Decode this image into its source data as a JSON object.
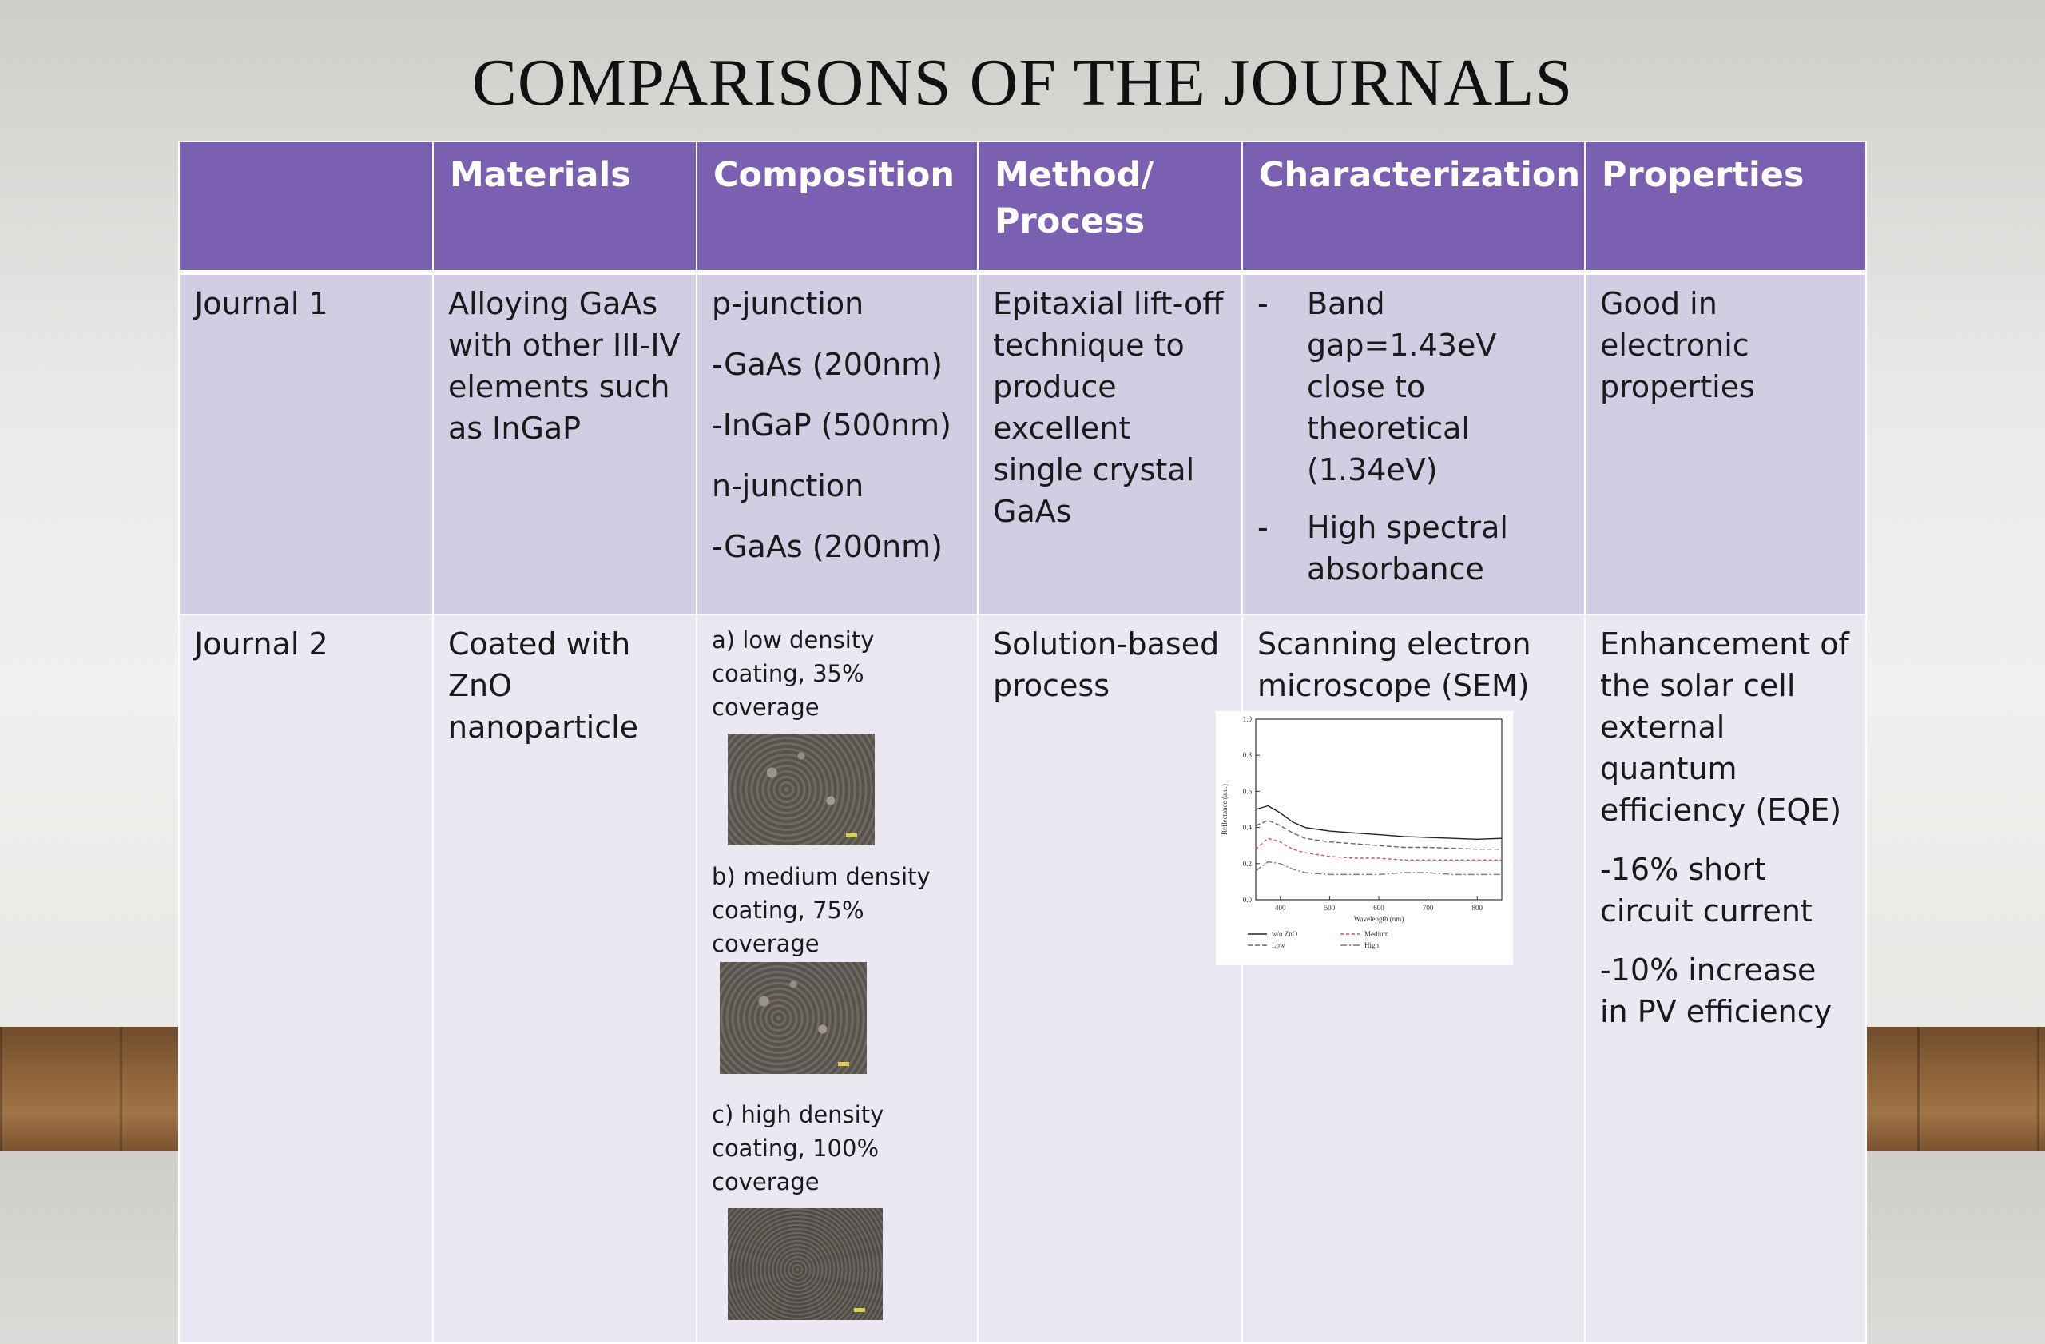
{
  "title": "COMPARISONS OF THE JOURNALS",
  "headers": [
    "",
    "Materials",
    "Composition",
    "Method/ Process",
    "Characterization",
    "Properties"
  ],
  "rows": [
    {
      "label": "Journal 1",
      "materials": "Alloying GaAs with other III-IV elements such as InGaP",
      "composition": [
        "p-junction",
        "-GaAs (200nm)",
        "-InGaP (500nm)",
        "n-junction",
        "-GaAs (200nm)"
      ],
      "method": "Epitaxial lift-off technique to produce excellent single crystal GaAs",
      "characterization": [
        {
          "dash": "-",
          "text": "Band gap=1.43eV close to theoretical (1.34eV)"
        },
        {
          "dash": "-",
          "text": "High spectral absorbance"
        }
      ],
      "properties": "Good in electronic properties"
    },
    {
      "label": "Journal 2",
      "materials": "Coated with ZnO nanoparticle",
      "composition": [
        "a) low density coating, 35% coverage",
        "b) medium density coating, 75% coverage",
        "c) high density coating, 100% coverage"
      ],
      "method": "Solution-based process",
      "characterization": "Scanning electron microscope (SEM)",
      "properties": [
        "Enhancement of the solar cell external quantum efficiency (EQE)",
        "-16% short circuit current",
        "-10% increase in PV efficiency"
      ]
    }
  ],
  "chart_data": {
    "type": "line",
    "x": [
      350,
      375,
      400,
      425,
      450,
      500,
      550,
      600,
      650,
      700,
      750,
      800,
      850
    ],
    "series": [
      {
        "name": "w/o ZnO",
        "values": [
          0.5,
          0.52,
          0.48,
          0.43,
          0.4,
          0.38,
          0.37,
          0.36,
          0.35,
          0.345,
          0.34,
          0.335,
          0.34
        ]
      },
      {
        "name": "Low",
        "values": [
          0.41,
          0.44,
          0.41,
          0.37,
          0.34,
          0.32,
          0.31,
          0.3,
          0.29,
          0.29,
          0.285,
          0.28,
          0.28
        ]
      },
      {
        "name": "Medium",
        "values": [
          0.28,
          0.34,
          0.32,
          0.28,
          0.26,
          0.24,
          0.23,
          0.23,
          0.22,
          0.22,
          0.22,
          0.22,
          0.22
        ]
      },
      {
        "name": "High",
        "values": [
          0.16,
          0.21,
          0.2,
          0.17,
          0.15,
          0.14,
          0.14,
          0.14,
          0.15,
          0.15,
          0.14,
          0.14,
          0.14
        ]
      }
    ],
    "xlabel": "Wavelength (nm)",
    "ylabel": "Reflectance (a.u.)",
    "xlim": [
      350,
      850
    ],
    "ylim": [
      0.0,
      1.0
    ],
    "xticks": [
      "400",
      "500",
      "600",
      "700",
      "800"
    ],
    "yticks": [
      "0.0",
      "0.2",
      "0.4",
      "0.6",
      "0.8",
      "1.0"
    ],
    "grid": false,
    "legend": "bottom",
    "colors": {
      "w/o ZnO": "#222222",
      "Low": "#666666",
      "Medium": "#e05050",
      "High": "#777777"
    }
  }
}
